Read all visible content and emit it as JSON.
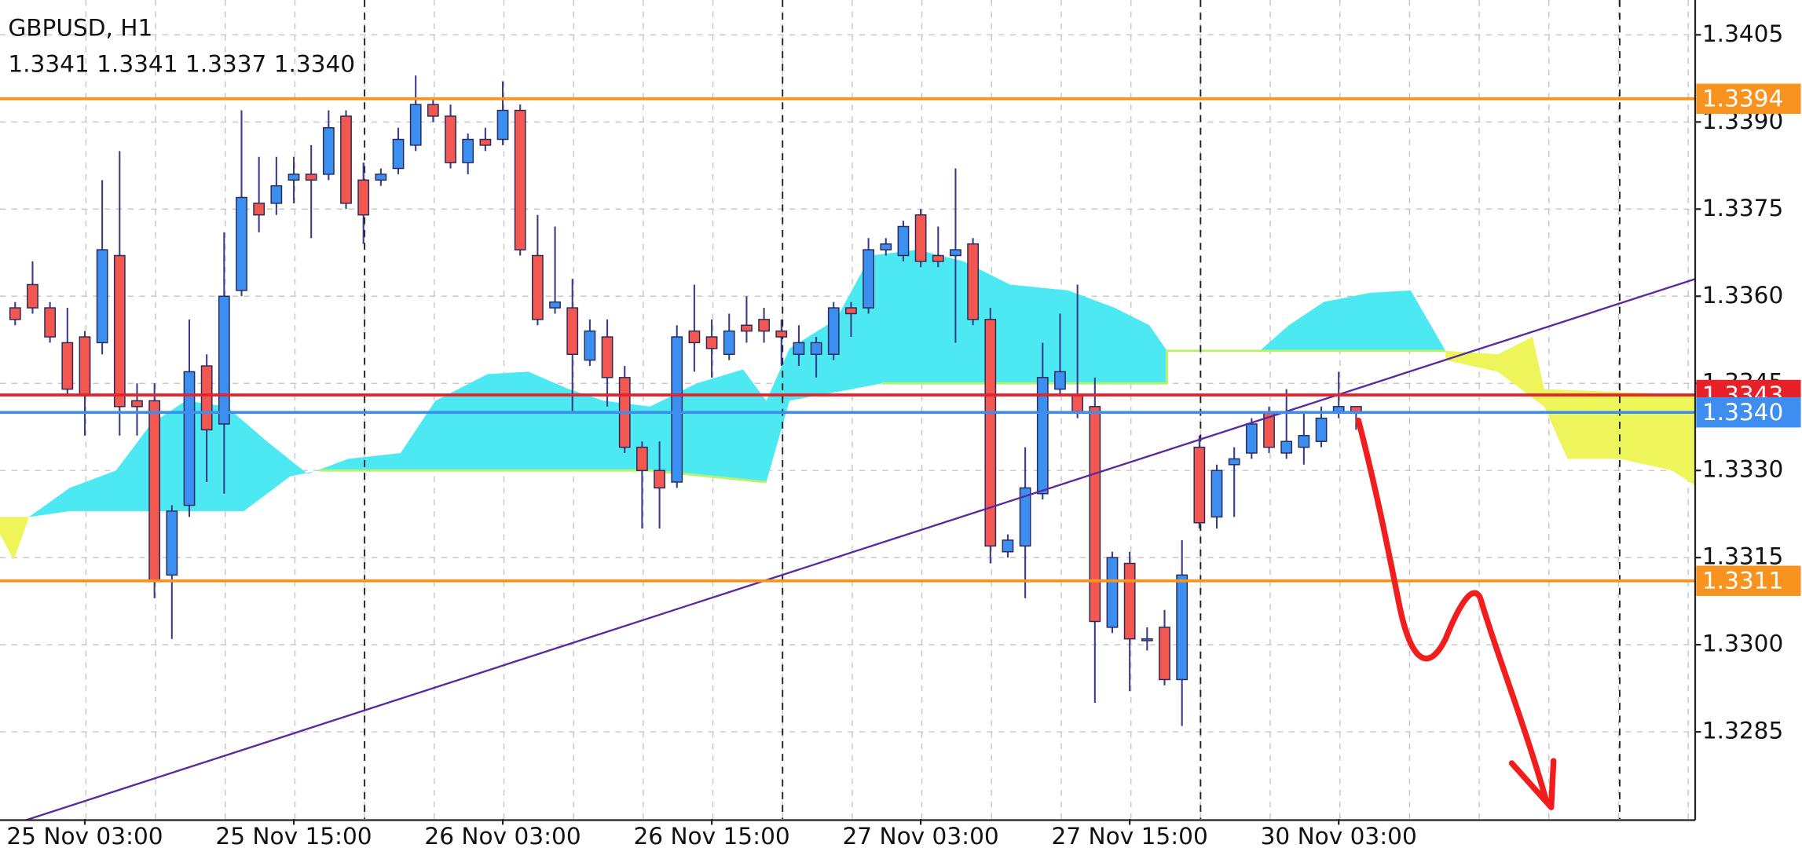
{
  "chart_data": {
    "type": "candlestick",
    "title": "GBPUSD, H1",
    "subtitle": "1.3341 1.3341 1.3337 1.3340",
    "up_color": "#3b8ff0",
    "down_color": "#f2584f",
    "open": [
      1.3358,
      1.3362,
      1.3358,
      1.3352,
      1.3353,
      1.3352,
      1.3367,
      1.3342,
      1.3342,
      1.3312,
      1.3324,
      1.3348,
      1.3338,
      1.3361,
      1.3376,
      1.3376,
      1.338,
      1.3381,
      1.3381,
      1.3391,
      1.338,
      1.338,
      1.3382,
      1.3386,
      1.3393,
      1.3391,
      1.3383,
      1.3387,
      1.3387,
      1.3392,
      1.3367,
      1.3358,
      1.3358,
      1.3349,
      1.3353,
      1.3346,
      1.3334,
      1.333,
      1.3328,
      1.3354,
      1.3353,
      1.335,
      1.3355,
      1.3356,
      1.3354,
      1.335,
      1.335,
      1.335,
      1.3358,
      1.3358,
      1.3368,
      1.3367,
      1.3374,
      1.3367,
      1.3367,
      1.3369,
      1.3356,
      1.3316,
      1.3317,
      1.3326,
      1.3344,
      1.3343,
      1.3341,
      1.3303,
      1.3314,
      1.3301,
      1.3303,
      1.3294,
      1.3334,
      1.3322,
      1.3331,
      1.3333,
      1.334,
      1.3333,
      1.3334,
      1.3335,
      1.334,
      1.3341
    ],
    "high": [
      1.3359,
      1.3366,
      1.3359,
      1.3358,
      1.3354,
      1.338,
      1.3385,
      1.3345,
      1.3345,
      1.3324,
      1.3356,
      1.335,
      1.3371,
      1.3392,
      1.3384,
      1.3384,
      1.3384,
      1.3386,
      1.3392,
      1.3392,
      1.3383,
      1.3382,
      1.3389,
      1.3398,
      1.3394,
      1.3393,
      1.3388,
      1.3389,
      1.3397,
      1.3393,
      1.3374,
      1.3372,
      1.3363,
      1.3356,
      1.3356,
      1.3348,
      1.3335,
      1.3335,
      1.3355,
      1.3362,
      1.3356,
      1.3357,
      1.336,
      1.3358,
      1.3356,
      1.3355,
      1.3353,
      1.3359,
      1.3359,
      1.337,
      1.337,
      1.3373,
      1.3375,
      1.3372,
      1.3382,
      1.337,
      1.3358,
      1.3319,
      1.3334,
      1.3352,
      1.3357,
      1.3362,
      1.3346,
      1.3316,
      1.3316,
      1.3303,
      1.3306,
      1.3318,
      1.3336,
      1.3331,
      1.3334,
      1.3339,
      1.3341,
      1.3344,
      1.334,
      1.3341,
      1.3347,
      1.3341
    ],
    "low": [
      1.3355,
      1.3357,
      1.3352,
      1.3343,
      1.3336,
      1.335,
      1.3336,
      1.3336,
      1.3308,
      1.3301,
      1.3322,
      1.3328,
      1.3326,
      1.336,
      1.3371,
      1.3374,
      1.3376,
      1.337,
      1.338,
      1.3375,
      1.3369,
      1.3379,
      1.3381,
      1.3385,
      1.339,
      1.3382,
      1.3381,
      1.3385,
      1.3386,
      1.3367,
      1.3355,
      1.3357,
      1.334,
      1.3348,
      1.3341,
      1.3333,
      1.332,
      1.332,
      1.3327,
      1.3347,
      1.3346,
      1.3349,
      1.3352,
      1.3352,
      1.3348,
      1.3348,
      1.3346,
      1.3349,
      1.3353,
      1.3357,
      1.3367,
      1.3366,
      1.3365,
      1.3365,
      1.3352,
      1.3355,
      1.3314,
      1.3315,
      1.3308,
      1.3325,
      1.3343,
      1.3339,
      1.329,
      1.3302,
      1.3292,
      1.3299,
      1.3293,
      1.3286,
      1.332,
      1.332,
      1.3322,
      1.3332,
      1.3333,
      1.3332,
      1.3331,
      1.3334,
      1.3339,
      1.3337
    ],
    "close": [
      1.3356,
      1.3358,
      1.3353,
      1.3344,
      1.3343,
      1.3368,
      1.3341,
      1.3341,
      1.3311,
      1.3323,
      1.3347,
      1.3337,
      1.336,
      1.3377,
      1.3374,
      1.3379,
      1.3381,
      1.338,
      1.3389,
      1.3376,
      1.3374,
      1.3381,
      1.3387,
      1.3393,
      1.3391,
      1.3383,
      1.3387,
      1.3386,
      1.3392,
      1.3368,
      1.3356,
      1.3359,
      1.335,
      1.3354,
      1.3346,
      1.3334,
      1.333,
      1.3327,
      1.3353,
      1.3352,
      1.3351,
      1.3354,
      1.3354,
      1.3354,
      1.3353,
      1.3352,
      1.3352,
      1.3358,
      1.3357,
      1.3368,
      1.3369,
      1.3372,
      1.3366,
      1.3366,
      1.3368,
      1.3356,
      1.3317,
      1.3318,
      1.3327,
      1.3346,
      1.3347,
      1.334,
      1.3304,
      1.3315,
      1.3301,
      1.3301,
      1.3294,
      1.3312,
      1.3321,
      1.333,
      1.3332,
      1.3338,
      1.3334,
      1.3335,
      1.3336,
      1.3339,
      1.3341,
      1.334
    ],
    "xlim": [
      -0.87,
      96.47
    ],
    "xticks": [
      {
        "value": 4,
        "label": "25 Nov 03:00"
      },
      {
        "value": 16,
        "label": "25 Nov 15:00"
      },
      {
        "value": 28,
        "label": "26 Nov 03:00"
      },
      {
        "value": 40,
        "label": "26 Nov 15:00"
      },
      {
        "value": 52,
        "label": "27 Nov 03:00"
      },
      {
        "value": 64,
        "label": "27 Nov 15:00"
      },
      {
        "value": 76,
        "label": "30 Nov 03:00"
      }
    ],
    "ylim": [
      1.327,
      1.3411
    ],
    "yticks": [
      1.3405,
      {
        "value": 1.339,
        "label": "1.3390"
      },
      1.3375,
      {
        "value": 1.336,
        "label": "1.3360"
      },
      1.3345,
      {
        "value": 1.333,
        "label": "1.3330"
      },
      1.3315,
      {
        "value": 1.33,
        "label": "1.3300"
      },
      1.3285
    ],
    "grid": true,
    "levels": [
      {
        "value": 1.3394,
        "color": "#f7931e"
      },
      {
        "value": 1.3311,
        "color": "#f7931e"
      },
      {
        "value": 1.3343,
        "color": "#e8202a"
      },
      {
        "value": 1.334,
        "label": "1.3340",
        "color": "#3d8ef0"
      }
    ],
    "trendline": {
      "x": [
        -0.2,
        96.5
      ],
      "y": [
        1.3269,
        1.3363
      ],
      "color": "#5b2a9e"
    }
  }
}
